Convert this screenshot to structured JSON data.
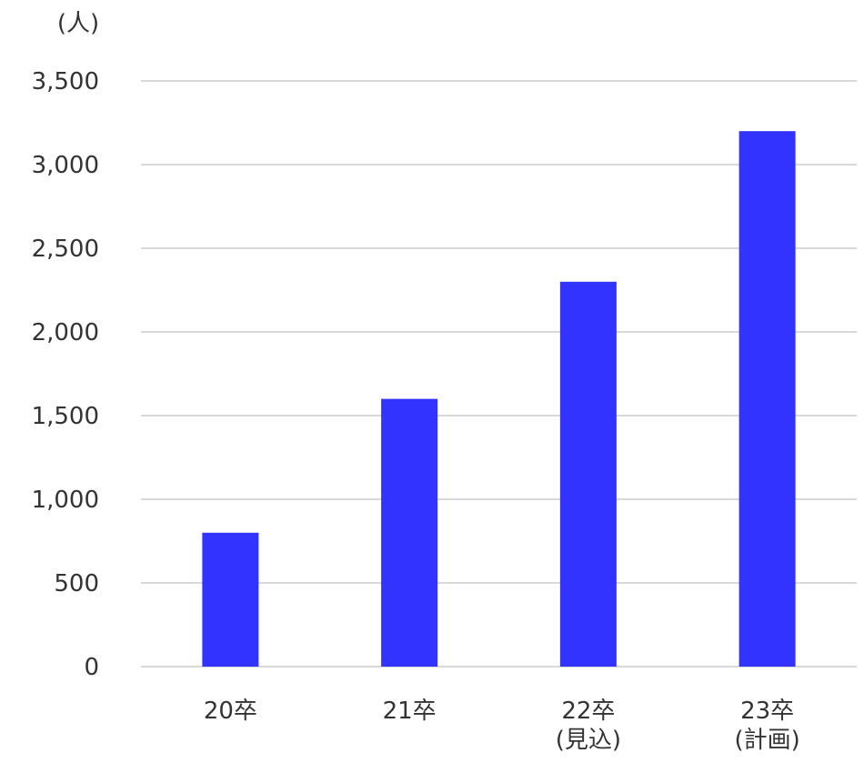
{
  "chart_data": {
    "type": "bar",
    "unit_label": "(人)",
    "categories": [
      [
        "20卒"
      ],
      [
        "21卒"
      ],
      [
        "22卒",
        "(見込)"
      ],
      [
        "23卒",
        "(計画)"
      ]
    ],
    "values": [
      800,
      1600,
      2300,
      3200
    ],
    "ylim": [
      0,
      3500
    ],
    "yticks": [
      "0",
      "500",
      "1,000",
      "1,500",
      "2,000",
      "2,500",
      "3,000",
      "3,500"
    ],
    "grid": true,
    "legend": "none",
    "bar_color": "#3333ff",
    "grid_color": "#d9d9d9"
  }
}
